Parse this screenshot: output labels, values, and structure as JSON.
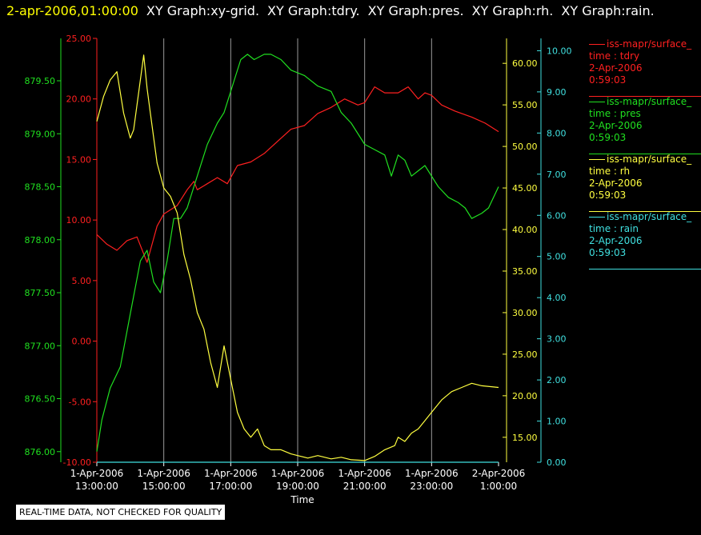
{
  "header": {
    "timestamp": "2-apr-2006,01:00:00",
    "graphs": [
      "XY Graph:xy-grid.",
      "XY Graph:tdry.",
      "XY Graph:pres.",
      "XY Graph:rh.",
      "XY Graph:rain."
    ]
  },
  "legend": [
    {
      "name": "iss-mapr/surface_",
      "label": "time : tdry",
      "date": "2-Apr-2006",
      "time": "0:59:03",
      "color": "#ff2020"
    },
    {
      "name": "iss-mapr/surface_",
      "label": "time : pres",
      "date": "2-Apr-2006",
      "time": "0:59:03",
      "color": "#20e020"
    },
    {
      "name": "iss-mapr/surface_",
      "label": "time : rh",
      "date": "2-Apr-2006",
      "time": "0:59:03",
      "color": "#ffff40"
    },
    {
      "name": "iss-mapr/surface_",
      "label": "time : rain",
      "date": "2-Apr-2006",
      "time": "0:59:03",
      "color": "#40e0e0"
    }
  ],
  "disclaimer": "REAL-TIME DATA, NOT CHECKED FOR QUALITY",
  "chart_data": {
    "type": "line",
    "xlabel": "Time",
    "x_ticks": [
      {
        "top": "1-Apr-2006",
        "bottom": "13:00:00"
      },
      {
        "top": "1-Apr-2006",
        "bottom": "15:00:00"
      },
      {
        "top": "1-Apr-2006",
        "bottom": "17:00:00"
      },
      {
        "top": "1-Apr-2006",
        "bottom": "19:00:00"
      },
      {
        "top": "1-Apr-2006",
        "bottom": "21:00:00"
      },
      {
        "top": "1-Apr-2006",
        "bottom": "23:00:00"
      },
      {
        "top": "2-Apr-2006",
        "bottom": "1:00:00"
      }
    ],
    "x_range_hours": [
      13,
      25
    ],
    "axes": [
      {
        "id": "pres",
        "color": "#20e020",
        "range": [
          875.9,
          879.9
        ],
        "ticks": [
          "876.00",
          "876.50",
          "877.00",
          "877.50",
          "878.00",
          "878.50",
          "879.00",
          "879.50"
        ]
      },
      {
        "id": "tdry",
        "color": "#ff2020",
        "range": [
          -10,
          25
        ],
        "ticks": [
          "-10.00",
          "-5.00",
          "0.00",
          "5.00",
          "10.00",
          "15.00",
          "20.00",
          "25.00"
        ]
      },
      {
        "id": "rh",
        "color": "#ffff40",
        "range": [
          12,
          63
        ],
        "ticks": [
          "15.00",
          "20.00",
          "25.00",
          "30.00",
          "35.00",
          "40.00",
          "45.00",
          "50.00",
          "55.00",
          "60.00"
        ]
      },
      {
        "id": "rain",
        "color": "#40e0e0",
        "range": [
          0,
          10.3
        ],
        "ticks": [
          "0.00",
          "1.00",
          "2.00",
          "3.00",
          "4.00",
          "5.00",
          "6.00",
          "7.00",
          "8.00",
          "9.00",
          "10.00"
        ]
      }
    ],
    "series": [
      {
        "axis": "tdry",
        "color": "#ff2020",
        "x": [
          13.0,
          13.3,
          13.6,
          13.9,
          14.2,
          14.5,
          14.7,
          14.8,
          15.0,
          15.4,
          15.7,
          15.9,
          16.0,
          16.3,
          16.6,
          16.9,
          17.2,
          17.6,
          18.0,
          18.4,
          18.8,
          19.2,
          19.6,
          20.0,
          20.4,
          20.8,
          21.0,
          21.3,
          21.6,
          22.0,
          22.3,
          22.6,
          22.8,
          23.0,
          23.3,
          23.7,
          24.2,
          24.6,
          25.0
        ],
        "values": [
          8.8,
          8.0,
          7.5,
          8.3,
          8.6,
          6.5,
          8.5,
          9.5,
          10.5,
          11.2,
          12.5,
          13.2,
          12.5,
          13.0,
          13.5,
          13.0,
          14.5,
          14.8,
          15.5,
          16.5,
          17.5,
          17.8,
          18.8,
          19.3,
          20.0,
          19.5,
          19.7,
          21.0,
          20.5,
          20.5,
          21.0,
          20.0,
          20.5,
          20.3,
          19.5,
          19.0,
          18.5,
          18.0,
          17.3
        ]
      },
      {
        "axis": "pres",
        "color": "#20e020",
        "x": [
          13.0,
          13.15,
          13.4,
          13.7,
          14.0,
          14.3,
          14.5,
          14.7,
          14.9,
          15.1,
          15.3,
          15.5,
          15.7,
          16.0,
          16.3,
          16.6,
          16.8,
          17.1,
          17.3,
          17.5,
          17.7,
          18.0,
          18.2,
          18.5,
          18.8,
          19.2,
          19.6,
          20.0,
          20.3,
          20.6,
          21.0,
          21.3,
          21.6,
          21.8,
          22.0,
          22.2,
          22.4,
          22.6,
          22.8,
          23.0,
          23.2,
          23.5,
          23.8,
          24.0,
          24.2,
          24.5,
          24.7,
          25.0
        ],
        "values": [
          876.0,
          876.3,
          876.6,
          876.8,
          877.3,
          877.8,
          877.9,
          877.6,
          877.5,
          877.8,
          878.2,
          878.2,
          878.3,
          878.6,
          878.9,
          879.1,
          879.2,
          879.5,
          879.7,
          879.75,
          879.7,
          879.75,
          879.75,
          879.7,
          879.6,
          879.55,
          879.45,
          879.4,
          879.2,
          879.1,
          878.9,
          878.85,
          878.8,
          878.6,
          878.8,
          878.75,
          878.6,
          878.65,
          878.7,
          878.6,
          878.5,
          878.4,
          878.35,
          878.3,
          878.2,
          878.25,
          878.3,
          878.5
        ]
      },
      {
        "axis": "rh",
        "color": "#ffff40",
        "x": [
          13.0,
          13.2,
          13.4,
          13.6,
          13.8,
          14.0,
          14.1,
          14.3,
          14.4,
          14.5,
          14.6,
          14.8,
          15.0,
          15.2,
          15.4,
          15.6,
          15.8,
          16.0,
          16.2,
          16.4,
          16.6,
          16.8,
          17.0,
          17.2,
          17.4,
          17.6,
          17.8,
          18.0,
          18.2,
          18.5,
          18.8,
          19.0,
          19.3,
          19.6,
          20.0,
          20.3,
          20.6,
          21.0,
          21.3,
          21.6,
          21.9,
          22.0,
          22.2,
          22.4,
          22.6,
          22.8,
          23.0,
          23.3,
          23.6,
          23.9,
          24.2,
          24.5,
          25.0
        ],
        "values": [
          53,
          56,
          58,
          59,
          54,
          51,
          52,
          58,
          61,
          57,
          54,
          48,
          45,
          44,
          42,
          37,
          34,
          30,
          28,
          24,
          21,
          26,
          22,
          18,
          16,
          15,
          16,
          14,
          13.5,
          13.5,
          13,
          12.8,
          12.5,
          12.8,
          12.4,
          12.6,
          12.3,
          12.2,
          12.7,
          13.5,
          14,
          15,
          14.5,
          15.5,
          16,
          17,
          18,
          19.5,
          20.5,
          21,
          21.5,
          21.2,
          21
        ]
      },
      {
        "axis": "rain",
        "color": "#40e0e0",
        "x": [
          13.0,
          25.0
        ],
        "values": [
          0.0,
          0.0
        ]
      }
    ]
  }
}
